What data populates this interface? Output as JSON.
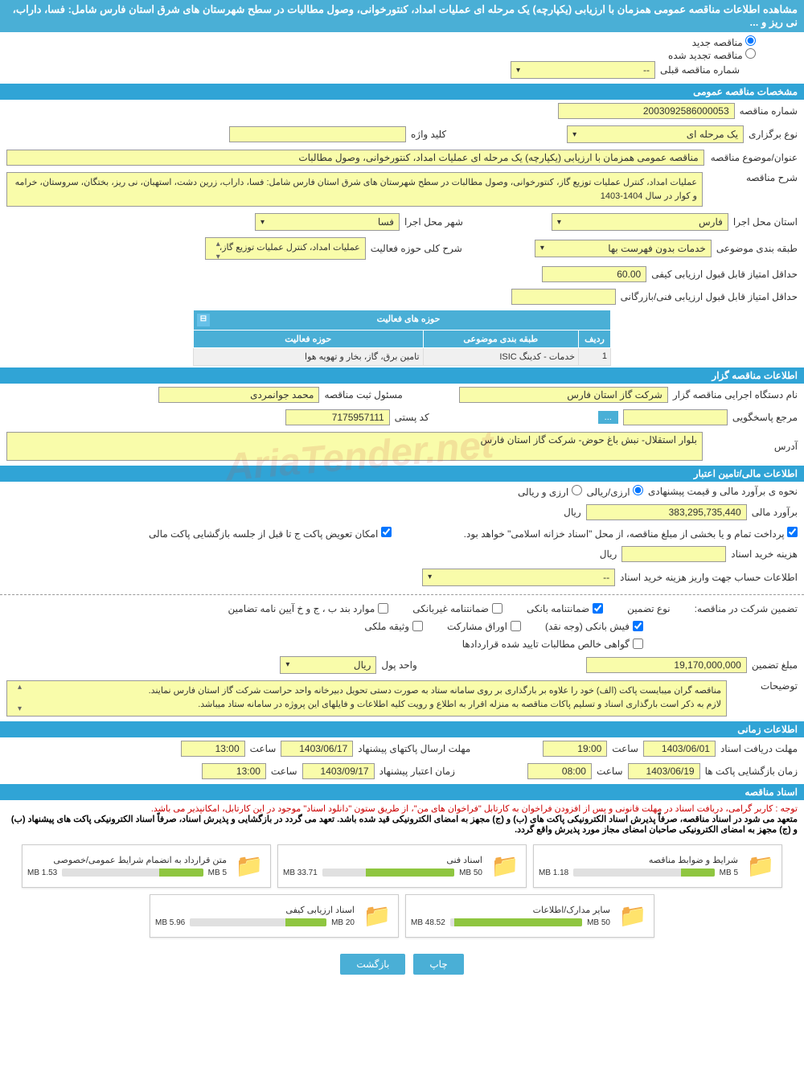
{
  "header": {
    "title": "مشاهده اطلاعات مناقصه عمومی همزمان با ارزیابی (یکپارچه) یک مرحله ای عملیات امداد، کنتورخوانی، وصول مطالبات در سطح شهرستان های شرق استان فارس شامل: فسا، داراب، نی ریز و ..."
  },
  "radio": {
    "new_tender": "مناقصه جدید",
    "renewed_tender": "مناقصه تجدید شده",
    "prev_tender_label": "شماره مناقصه قبلی",
    "prev_tender_value": "--"
  },
  "general": {
    "section_title": "مشخصات مناقصه عمومی",
    "tender_no_label": "شماره مناقصه",
    "tender_no": "2003092586000053",
    "hold_type_label": "نوع برگزاری",
    "hold_type": "یک مرحله ای",
    "keyword_label": "کلید واژه",
    "keyword": "",
    "subject_label": "عنوان/موضوع مناقصه",
    "subject": "مناقصه عمومی همزمان با ارزیابی (یکپارچه) یک مرحله ای عملیات امداد، کنتورخوانی، وصول مطالبات",
    "desc_label": "شرح مناقصه",
    "desc": "عملیات امداد، کنترل عملیات توزیع گاز، کنتورخوانی، وصول مطالبات در سطح شهرستان های شرق استان فارس شامل: فسا، داراب، زرین دشت، استهبان، نی ریز، بختگان، سروستان، خرامه و کوار در سال 1404-1403",
    "province_label": "استان محل اجرا",
    "province": "فارس",
    "city_label": "شهر محل اجرا",
    "city": "فسا",
    "class_label": "طبقه بندی موضوعی",
    "class": "خدمات بدون فهرست بها",
    "activity_desc_label": "شرح کلی حوزه فعالیت",
    "activity_desc": "عملیات امداد، کنترل عملیات توزیع گاز،",
    "min_quality_label": "حداقل امتیاز قابل قبول ارزیابی کیفی",
    "min_quality": "60.00",
    "min_tech_label": "حداقل امتیاز قابل قبول ارزیابی فنی/بازرگانی",
    "min_tech": ""
  },
  "activity_table": {
    "title": "حوزه های فعالیت",
    "col_row": "ردیف",
    "col_class": "طبقه بندی موضوعی",
    "col_area": "حوزه فعالیت",
    "row1_no": "1",
    "row1_class": "خدمات - کدینگ ISIC",
    "row1_area": "تامین برق، گاز، بخار و تهویه هوا"
  },
  "tenderer": {
    "section_title": "اطلاعات مناقصه گزار",
    "org_label": "نام دستگاه اجرایی مناقصه گزار",
    "org": "شرکت گاز استان فارس",
    "reg_officer_label": "مسئول ثبت مناقصه",
    "reg_officer": "محمد   جوانمردی",
    "accountable_label": "مرجع پاسخگویی",
    "accountable": "",
    "more_btn": "...",
    "postal_label": "کد پستی",
    "postal": "7175957111",
    "address_label": "آدرس",
    "address": "بلوار استقلال- نبش باغ حوض- شرکت گاز استان فارس"
  },
  "financial": {
    "section_title": "اطلاعات مالی/تامین اعتبار",
    "est_label": "نحوه ی برآورد مالی و قیمت پیشنهادی",
    "radio_curr": "ارزی/ریالی",
    "radio_both": "ارزی و ریالی",
    "est_amount_label": "برآورد مالی",
    "est_amount": "383,295,735,440",
    "currency": "ریال",
    "payment_note": "پرداخت تمام و یا بخشی از مبلغ مناقصه، از محل \"اسناد خزانه اسلامی\" خواهد بود.",
    "exchange_envelope": "امکان تعویض پاکت ج تا قبل از جلسه بازگشایی پاکت مالی",
    "doc_cost_label": "هزینه خرید اسناد",
    "doc_cost_currency": "ریال",
    "account_info_label": "اطلاعات حساب جهت واریز هزینه خرید اسناد",
    "account_info": "--"
  },
  "guarantee": {
    "label": "تضمین شرکت در مناقصه:",
    "type_label": "نوع تضمین",
    "bank_guarantee": "ضمانتنامه بانکی",
    "nonbank_guarantee": "ضمانتنامه غیربانکی",
    "items_b_j_kh": "موارد بند ب ، ج و خ آیین نامه تضامین",
    "bank_slip": "فیش بانکی (وجه نقد)",
    "partnership": "اوراق مشارکت",
    "property": "وثیقه ملکی",
    "claims_cert": "گواهی خالص مطالبات تایید شده قراردادها",
    "amount_label": "مبلغ تضمین",
    "amount": "19,170,000,000",
    "unit_label": "واحد پول",
    "unit": "ریال",
    "notes_label": "توضیحات",
    "notes": "مناقصه گران میبایست پاکت (الف) خود را علاوه بر بارگذاری بر روی سامانه ستاد به صورت دستی تحویل دبیرخانه واحد حراست شرکت گاز استان فارس نمایند.\nلازم به ذکر است بارگذاری اسناد و تسلیم پاکات مناقصه به منزله  اقرار به اطلاع و رویت کلیه اطلاعات و فایلهای این پروژه در سامانه ستاد میباشد."
  },
  "timing": {
    "section_title": "اطلاعات زمانی",
    "doc_deadline_label": "مهلت دریافت اسناد",
    "doc_deadline_date": "1403/06/01",
    "doc_deadline_time": "19:00",
    "proposal_deadline_label": "مهلت ارسال پاکتهای پیشنهاد",
    "proposal_deadline_date": "1403/06/17",
    "proposal_deadline_time": "13:00",
    "opening_label": "زمان بازگشایی پاکت ها",
    "opening_date": "1403/06/19",
    "opening_time": "08:00",
    "validity_label": "زمان اعتبار پیشنهاد",
    "validity_date": "1403/09/17",
    "validity_time": "13:00",
    "time_label": "ساعت"
  },
  "documents": {
    "section_title": "اسناد مناقصه",
    "notice_red": "توجه : کاربر گرامی، دریافت اسناد در مهلت قانونی و پس از افزودن فراخوان به کارتابل \"فراخوان های من\"، از طریق ستون \"دانلود اسناد\" موجود در این کارتابل، امکانپذیر می باشد.",
    "notice_black": "متعهد می شود در اسناد مناقصه، صرفاً پذیرش اسناد الکترونیکی پاکت های (ب) و (ج) مجهز به امضای الکترونیکی قید شده باشد. تعهد می گردد در بازگشایی و پذیرش اسناد، صرفاً اسناد الکترونیکی پاکت های پیشنهاد (ب) و (ج) مجهز به امضای الکترونیکی صاحبان امضای مجاز مورد پذیرش واقع گردد.",
    "files": [
      {
        "title": "شرایط و ضوابط مناقصه",
        "used": "1.18 MB",
        "total": "5 MB",
        "percent": 24
      },
      {
        "title": "اسناد فنی",
        "used": "33.71 MB",
        "total": "50 MB",
        "percent": 67
      },
      {
        "title": "متن قرارداد به انضمام شرایط عمومی/خصوصی",
        "used": "1.53 MB",
        "total": "5 MB",
        "percent": 31
      },
      {
        "title": "سایر مدارک/اطلاعات",
        "used": "48.52 MB",
        "total": "50 MB",
        "percent": 97
      },
      {
        "title": "اسناد ارزیابی کیفی",
        "used": "5.96 MB",
        "total": "20 MB",
        "percent": 30
      }
    ]
  },
  "buttons": {
    "print": "چاپ",
    "back": "بازگشت"
  },
  "watermark": "AriaTender.net"
}
